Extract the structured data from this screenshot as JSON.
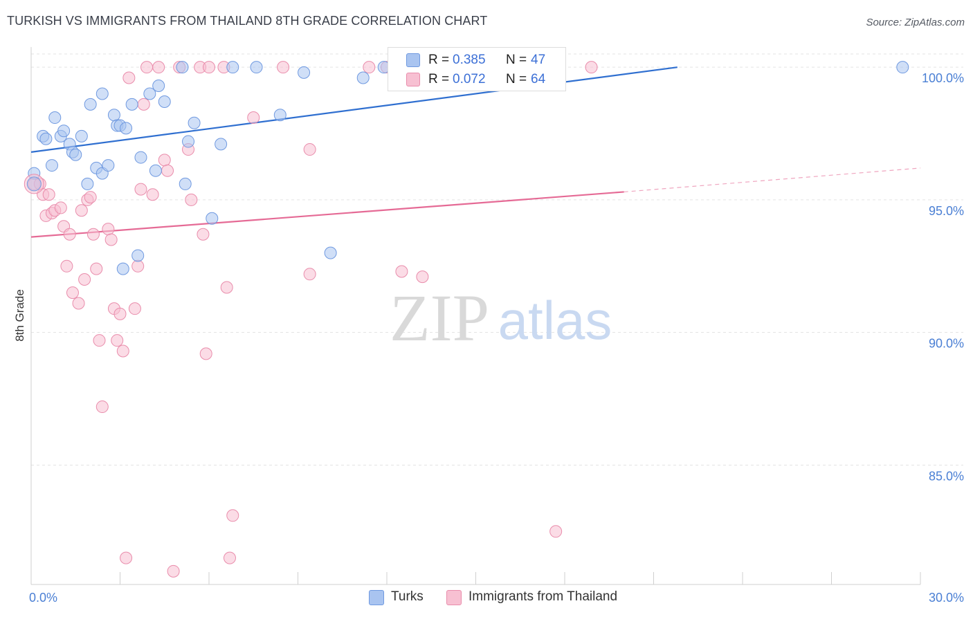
{
  "title": "TURKISH VS IMMIGRANTS FROM THAILAND 8TH GRADE CORRELATION CHART",
  "source": "Source: ZipAtlas.com",
  "watermark": {
    "zip": "ZIP",
    "atlas": "atlas"
  },
  "legend": {
    "rows": [
      {
        "r_label": "R =",
        "r_value": "0.385",
        "n_label": "N =",
        "n_value": "47",
        "color": "#a9c4f0",
        "border": "#6f99e0"
      },
      {
        "r_label": "R =",
        "r_value": "0.072",
        "n_label": "N =",
        "n_value": "64",
        "color": "#f7c0d2",
        "border": "#e98cab"
      }
    ]
  },
  "bottom_legend": [
    {
      "label": "Turks",
      "color": "#a9c4f0",
      "border": "#6f99e0"
    },
    {
      "label": "Immigrants from Thailand",
      "color": "#f7c0d2",
      "border": "#e98cab"
    }
  ],
  "chart_data": {
    "type": "scatter",
    "title": "TURKISH VS IMMIGRANTS FROM THAILAND 8TH GRADE CORRELATION CHART",
    "xlabel": "",
    "ylabel": "8th Grade",
    "xlim": [
      0,
      30
    ],
    "ylim": [
      80.5,
      100.5
    ],
    "x_tick_labels": [
      {
        "value": 0,
        "label": "0.0%"
      },
      {
        "value": 30,
        "label": "30.0%"
      }
    ],
    "y_tick_labels": [
      {
        "value": 100,
        "label": "100.0%"
      },
      {
        "value": 95,
        "label": "95.0%"
      },
      {
        "value": 90,
        "label": "90.0%"
      },
      {
        "value": 85,
        "label": "85.0%"
      }
    ],
    "grid": true,
    "series": [
      {
        "name": "Turks",
        "color": "#a9c4f0",
        "stroke": "#6f99e0",
        "line_color": "#2f6fd0",
        "trend": {
          "x0": 0,
          "y0": 96.8,
          "x1": 21.8,
          "y1": 100.0,
          "dashed_to": null
        },
        "points": [
          [
            0.1,
            96.0
          ],
          [
            0.4,
            97.4
          ],
          [
            0.5,
            97.3
          ],
          [
            0.7,
            96.3
          ],
          [
            0.8,
            98.1
          ],
          [
            1.0,
            97.4
          ],
          [
            1.1,
            97.6
          ],
          [
            1.3,
            97.1
          ],
          [
            1.4,
            96.8
          ],
          [
            1.5,
            96.7
          ],
          [
            1.7,
            97.4
          ],
          [
            1.9,
            95.6
          ],
          [
            2.0,
            98.6
          ],
          [
            2.2,
            96.2
          ],
          [
            2.4,
            96.0
          ],
          [
            2.4,
            99.0
          ],
          [
            2.6,
            96.3
          ],
          [
            2.8,
            98.2
          ],
          [
            2.9,
            97.8
          ],
          [
            3.0,
            97.8
          ],
          [
            3.1,
            92.4
          ],
          [
            3.2,
            97.7
          ],
          [
            3.4,
            98.6
          ],
          [
            3.6,
            92.9
          ],
          [
            3.7,
            96.6
          ],
          [
            4.0,
            99.0
          ],
          [
            4.2,
            96.1
          ],
          [
            4.3,
            99.3
          ],
          [
            4.5,
            98.7
          ],
          [
            5.1,
            100.0
          ],
          [
            5.2,
            95.6
          ],
          [
            5.3,
            97.2
          ],
          [
            5.5,
            97.9
          ],
          [
            6.1,
            94.3
          ],
          [
            6.4,
            97.1
          ],
          [
            6.8,
            100.0
          ],
          [
            7.6,
            100.0
          ],
          [
            8.4,
            98.2
          ],
          [
            9.2,
            99.8
          ],
          [
            10.1,
            93.0
          ],
          [
            11.2,
            99.6
          ],
          [
            11.9,
            100.0
          ],
          [
            12.4,
            100.0
          ],
          [
            29.4,
            100.0
          ]
        ]
      },
      {
        "name": "Immigrants from Thailand",
        "color": "#f7c0d2",
        "stroke": "#e98cab",
        "line_color": "#e56a95",
        "trend": {
          "x0": 0,
          "y0": 93.6,
          "x1": 20.0,
          "y1": 95.3,
          "dashed_to": [
            30,
            96.2
          ]
        },
        "points": [
          [
            0.1,
            95.6
          ],
          [
            0.3,
            95.6
          ],
          [
            0.4,
            95.2
          ],
          [
            0.5,
            94.4
          ],
          [
            0.6,
            95.2
          ],
          [
            0.7,
            94.5
          ],
          [
            0.8,
            94.6
          ],
          [
            1.0,
            94.7
          ],
          [
            1.1,
            94.0
          ],
          [
            1.2,
            92.5
          ],
          [
            1.3,
            93.7
          ],
          [
            1.4,
            91.5
          ],
          [
            1.6,
            91.1
          ],
          [
            1.7,
            94.6
          ],
          [
            1.8,
            92.0
          ],
          [
            1.9,
            95.0
          ],
          [
            2.0,
            95.1
          ],
          [
            2.1,
            93.7
          ],
          [
            2.2,
            92.4
          ],
          [
            2.3,
            89.7
          ],
          [
            2.4,
            87.2
          ],
          [
            2.6,
            93.9
          ],
          [
            2.7,
            93.5
          ],
          [
            2.8,
            90.9
          ],
          [
            2.9,
            89.7
          ],
          [
            3.0,
            90.7
          ],
          [
            3.1,
            89.3
          ],
          [
            3.2,
            81.5
          ],
          [
            3.3,
            99.6
          ],
          [
            3.5,
            90.9
          ],
          [
            3.6,
            92.5
          ],
          [
            3.7,
            95.4
          ],
          [
            3.8,
            98.6
          ],
          [
            3.9,
            100.0
          ],
          [
            4.1,
            95.2
          ],
          [
            4.3,
            100.0
          ],
          [
            4.5,
            96.5
          ],
          [
            4.6,
            96.1
          ],
          [
            4.8,
            81.0
          ],
          [
            5.0,
            100.0
          ],
          [
            5.3,
            96.9
          ],
          [
            5.4,
            95.0
          ],
          [
            5.7,
            100.0
          ],
          [
            5.8,
            93.7
          ],
          [
            5.9,
            89.2
          ],
          [
            6.0,
            100.0
          ],
          [
            6.5,
            100.0
          ],
          [
            6.6,
            91.7
          ],
          [
            6.7,
            81.5
          ],
          [
            6.8,
            83.1
          ],
          [
            7.5,
            98.1
          ],
          [
            8.5,
            100.0
          ],
          [
            9.4,
            96.9
          ],
          [
            9.4,
            92.2
          ],
          [
            11.4,
            100.0
          ],
          [
            12.0,
            100.0
          ],
          [
            12.5,
            92.3
          ],
          [
            13.2,
            92.1
          ],
          [
            17.7,
            82.5
          ],
          [
            18.9,
            100.0
          ]
        ]
      }
    ]
  }
}
